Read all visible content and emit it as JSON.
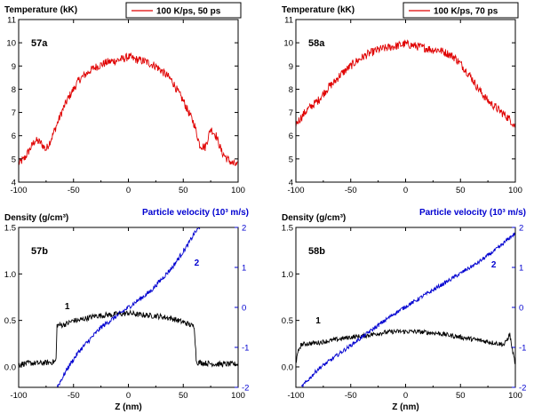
{
  "chart_data": [
    {
      "id": "57a",
      "type": "line",
      "panel_label": "57a",
      "ylabel": "Temperature (kK)",
      "legend": "100 K/ps, 50 ps",
      "legend_position": "top-right",
      "color": "#e00000",
      "xlim": [
        -100,
        100
      ],
      "ylim": [
        4,
        11
      ],
      "xticks": [
        "-100",
        "-50",
        "0",
        "50",
        "100"
      ],
      "yticks": [
        "4",
        "5",
        "6",
        "7",
        "8",
        "9",
        "10",
        "11"
      ],
      "series": [
        {
          "x": [
            -100,
            -95,
            -90,
            -85,
            -80,
            -75,
            -70,
            -65,
            -60,
            -55,
            -50,
            -45,
            -40,
            -35,
            -30,
            -25,
            -20,
            -15,
            -10,
            -5,
            0,
            5,
            10,
            15,
            20,
            25,
            30,
            35,
            40,
            45,
            50,
            55,
            60,
            65,
            70,
            75,
            80,
            85,
            90,
            95,
            100
          ],
          "values": [
            4.8,
            5.0,
            5.4,
            5.8,
            5.7,
            5.4,
            5.9,
            6.5,
            7.1,
            7.6,
            8.0,
            8.4,
            8.6,
            8.8,
            8.95,
            9.05,
            9.15,
            9.2,
            9.25,
            9.3,
            9.4,
            9.3,
            9.25,
            9.2,
            9.1,
            9.0,
            8.8,
            8.6,
            8.35,
            7.9,
            7.5,
            7.0,
            6.5,
            5.6,
            5.5,
            6.3,
            6.0,
            5.3,
            5.0,
            4.8,
            4.7
          ],
          "noise": 0.18
        }
      ]
    },
    {
      "id": "58a",
      "type": "line",
      "panel_label": "58a",
      "ylabel": "Temperature (kK)",
      "legend": "100 K/ps, 70 ps",
      "legend_position": "top-right",
      "color": "#e00000",
      "xlim": [
        -100,
        100
      ],
      "ylim": [
        4,
        11
      ],
      "xticks": [
        "-100",
        "-50",
        "0",
        "50",
        "100"
      ],
      "yticks": [
        "4",
        "5",
        "6",
        "7",
        "8",
        "9",
        "10",
        "11"
      ],
      "series": [
        {
          "x": [
            -100,
            -95,
            -90,
            -85,
            -80,
            -75,
            -70,
            -65,
            -60,
            -55,
            -50,
            -45,
            -40,
            -35,
            -30,
            -25,
            -20,
            -15,
            -10,
            -5,
            0,
            5,
            10,
            15,
            20,
            25,
            30,
            35,
            40,
            45,
            50,
            55,
            60,
            65,
            70,
            75,
            80,
            85,
            90,
            95,
            100
          ],
          "values": [
            6.5,
            6.8,
            7.1,
            7.3,
            7.5,
            7.8,
            8.1,
            8.3,
            8.6,
            8.8,
            9.0,
            9.2,
            9.35,
            9.5,
            9.6,
            9.7,
            9.75,
            9.8,
            9.85,
            9.9,
            9.95,
            9.9,
            9.85,
            9.8,
            9.75,
            9.7,
            9.7,
            9.6,
            9.5,
            9.35,
            9.1,
            8.8,
            8.5,
            8.1,
            7.8,
            7.5,
            7.3,
            7.1,
            6.9,
            6.7,
            6.4
          ],
          "noise": 0.18
        }
      ]
    },
    {
      "id": "57b",
      "type": "line",
      "panel_label": "57b",
      "ylabel": "Density (g/cm³)",
      "ylabel_right": "Particle velocity (10³ m/s)",
      "xlabel": "Z (nm)",
      "xlim": [
        -100,
        100
      ],
      "ylim": [
        -0.22,
        1.5
      ],
      "ylim_right": [
        -2,
        2
      ],
      "xticks": [
        "-100",
        "-50",
        "0",
        "50",
        "100"
      ],
      "yticks": [
        "0.0",
        "0.5",
        "1.0",
        "1.5"
      ],
      "yticks_right": [
        "-2",
        "-1",
        "0",
        "1",
        "2"
      ],
      "series": [
        {
          "name": "1",
          "axis": "left",
          "color": "#000000",
          "x": [
            -100,
            -90,
            -80,
            -70,
            -66,
            -65,
            -60,
            -55,
            -50,
            -45,
            -40,
            -35,
            -30,
            -25,
            -20,
            -15,
            -10,
            -5,
            0,
            5,
            10,
            15,
            20,
            25,
            30,
            35,
            40,
            45,
            50,
            55,
            58,
            60,
            61,
            62,
            70,
            80,
            90,
            100
          ],
          "values": [
            0.03,
            0.04,
            0.04,
            0.05,
            0.06,
            0.45,
            0.45,
            0.47,
            0.5,
            0.5,
            0.52,
            0.53,
            0.55,
            0.55,
            0.56,
            0.56,
            0.57,
            0.57,
            0.58,
            0.57,
            0.56,
            0.56,
            0.55,
            0.55,
            0.54,
            0.53,
            0.52,
            0.5,
            0.48,
            0.46,
            0.44,
            0.44,
            0.25,
            0.05,
            0.04,
            0.03,
            0.03,
            0.03
          ],
          "noise": 0.03
        },
        {
          "name": "2",
          "axis": "right",
          "color": "#0000d0",
          "x": [
            -65,
            -60,
            -55,
            -50,
            -45,
            -40,
            -35,
            -30,
            -25,
            -20,
            -15,
            -10,
            -5,
            0,
            5,
            10,
            15,
            20,
            25,
            30,
            35,
            40,
            45,
            50,
            55,
            60,
            65
          ],
          "values": [
            -2.0,
            -1.75,
            -1.5,
            -1.3,
            -1.1,
            -0.95,
            -0.8,
            -0.65,
            -0.5,
            -0.4,
            -0.3,
            -0.2,
            -0.1,
            0.0,
            0.1,
            0.2,
            0.3,
            0.4,
            0.55,
            0.7,
            0.85,
            1.0,
            1.2,
            1.4,
            1.6,
            1.85,
            2.0
          ],
          "noise": 0.06
        }
      ]
    },
    {
      "id": "58b",
      "type": "line",
      "panel_label": "58b",
      "ylabel": "Density (g/cm³)",
      "ylabel_right": "Particle velocity (10³ m/s)",
      "xlabel": "Z (nm)",
      "xlim": [
        -100,
        100
      ],
      "ylim": [
        -0.22,
        1.5
      ],
      "ylim_right": [
        -2,
        2
      ],
      "xticks": [
        "-100",
        "-50",
        "0",
        "50",
        "100"
      ],
      "yticks": [
        "0.0",
        "0.5",
        "1.0",
        "1.5"
      ],
      "yticks_right": [
        "-2",
        "-1",
        "0",
        "1",
        "2"
      ],
      "series": [
        {
          "name": "1",
          "axis": "left",
          "color": "#000000",
          "x": [
            -100,
            -97,
            -95,
            -90,
            -80,
            -70,
            -60,
            -50,
            -40,
            -30,
            -20,
            -10,
            0,
            10,
            20,
            30,
            40,
            50,
            60,
            70,
            80,
            90,
            95,
            97,
            100
          ],
          "values": [
            0.05,
            0.2,
            0.24,
            0.25,
            0.26,
            0.28,
            0.3,
            0.32,
            0.33,
            0.35,
            0.37,
            0.38,
            0.38,
            0.38,
            0.37,
            0.36,
            0.34,
            0.32,
            0.3,
            0.28,
            0.26,
            0.24,
            0.35,
            0.2,
            0.03
          ],
          "noise": 0.025
        },
        {
          "name": "2",
          "axis": "right",
          "color": "#0000d0",
          "x": [
            -95,
            -90,
            -85,
            -80,
            -75,
            -70,
            -65,
            -60,
            -55,
            -50,
            -45,
            -40,
            -35,
            -30,
            -25,
            -20,
            -15,
            -10,
            -5,
            0,
            5,
            10,
            15,
            20,
            25,
            30,
            35,
            40,
            45,
            50,
            55,
            60,
            65,
            70,
            75,
            80,
            85,
            90,
            95,
            100
          ],
          "values": [
            -2.0,
            -1.85,
            -1.7,
            -1.55,
            -1.45,
            -1.35,
            -1.25,
            -1.15,
            -1.05,
            -0.95,
            -0.85,
            -0.75,
            -0.65,
            -0.55,
            -0.45,
            -0.35,
            -0.25,
            -0.15,
            -0.07,
            0.02,
            0.1,
            0.18,
            0.27,
            0.35,
            0.43,
            0.52,
            0.6,
            0.68,
            0.77,
            0.85,
            0.94,
            1.02,
            1.1,
            1.2,
            1.3,
            1.4,
            1.5,
            1.62,
            1.75,
            1.85
          ],
          "noise": 0.05
        }
      ]
    }
  ]
}
